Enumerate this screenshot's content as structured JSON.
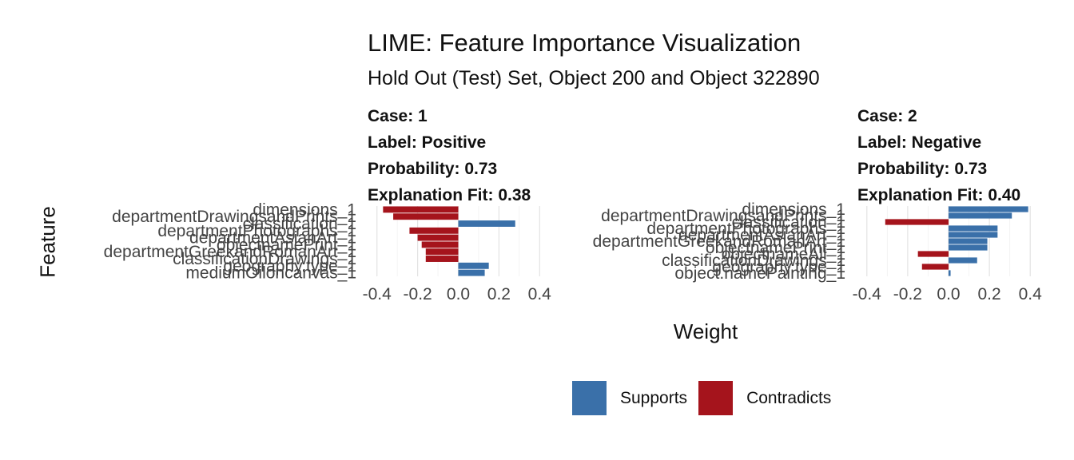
{
  "title": "LIME: Feature Importance Visualization",
  "subtitle": "Hold Out (Test) Set, Object 200 and Object 322890",
  "y_axis_title": "Feature",
  "x_axis_title": "Weight",
  "legend": [
    {
      "label": "Supports",
      "color": "#3A70A9"
    },
    {
      "label": "Contradicts",
      "color": "#A5141C"
    }
  ],
  "chart_data": [
    {
      "type": "bar",
      "orientation": "horizontal",
      "strip": {
        "case": "Case: 1",
        "label": "Label: Positive",
        "probability": "Probability: 0.73",
        "fit": "Explanation Fit: 0.38"
      },
      "xlim": [
        -0.45,
        0.45
      ],
      "x_ticks": [
        "-0.4",
        "-0.2",
        "0.0",
        "0.2",
        "0.4"
      ],
      "x_tick_values": [
        -0.4,
        -0.2,
        0.0,
        0.2,
        0.4
      ],
      "features": [
        "dimensions_1",
        "departmentDrawingsandPrints_1",
        "classification_1",
        "departmentPhotographs_1",
        "departmentAsianArt_1",
        "objectnamePrint_1",
        "departmentGreekandRomanArt_1",
        "classificationDrawings_1",
        "geography.type_1",
        "mediumOiloncanvas_1"
      ],
      "values": [
        -0.37,
        -0.32,
        0.28,
        -0.24,
        -0.2,
        -0.18,
        -0.16,
        -0.16,
        0.15,
        0.13
      ]
    },
    {
      "type": "bar",
      "orientation": "horizontal",
      "strip": {
        "case": "Case: 2",
        "label": "Label: Negative",
        "probability": "Probability: 0.73",
        "fit": "Explanation Fit: 0.40"
      },
      "xlim": [
        -0.45,
        0.45
      ],
      "x_ticks": [
        "-0.4",
        "-0.2",
        "0.0",
        "0.2",
        "0.4"
      ],
      "x_tick_values": [
        -0.4,
        -0.2,
        0.0,
        0.2,
        0.4
      ],
      "features": [
        "dimensions_1",
        "departmentDrawingsandPrints_1",
        "classification_1",
        "departmentPhotographs_1",
        "departmentAsianArt_1",
        "departmentGreekandRomanArt_1",
        "objectnamePrint_1",
        "objectnameAll_1",
        "classificationDrawings_1",
        "geography.type_1",
        "object.namePainting_1"
      ],
      "values": [
        0.39,
        0.31,
        -0.31,
        0.24,
        0.24,
        0.19,
        0.19,
        -0.15,
        0.14,
        -0.13,
        0.01
      ]
    }
  ]
}
